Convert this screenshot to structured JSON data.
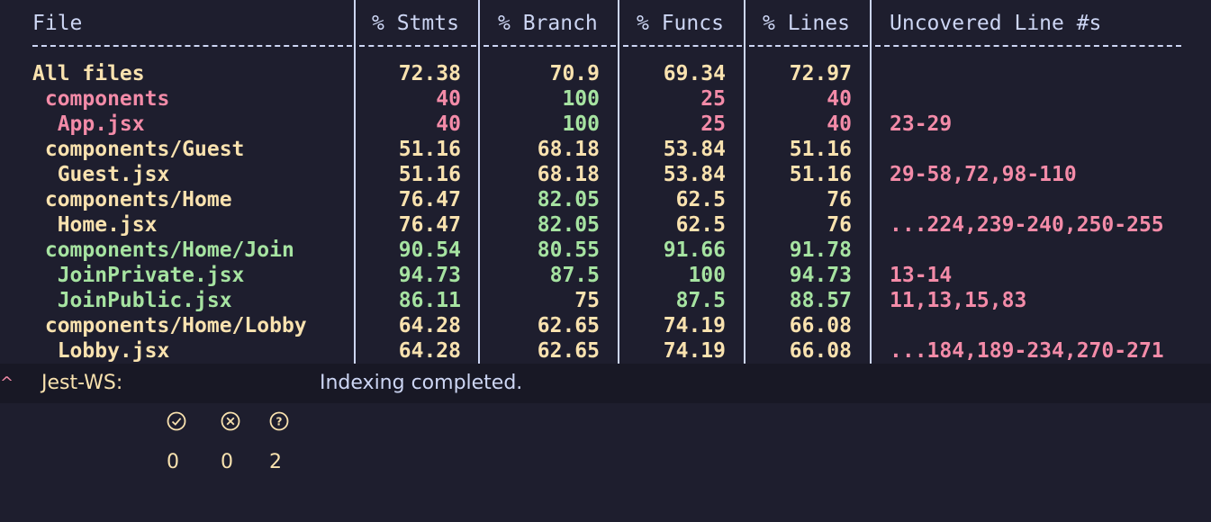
{
  "table": {
    "headers": [
      "File",
      "% Stmts",
      "% Branch",
      "% Funcs",
      "% Lines",
      "Uncovered Line #s"
    ],
    "rows": [
      {
        "file": "All files",
        "stmts": "72.38",
        "branch": "70.9",
        "funcs": "69.34",
        "lines": "72.97",
        "uncovered": "",
        "colors": [
          "y",
          "y",
          "y",
          "y",
          "y",
          "r"
        ]
      },
      {
        "file": " components",
        "stmts": "40",
        "branch": "100",
        "funcs": "25",
        "lines": "40",
        "uncovered": "",
        "colors": [
          "r",
          "r",
          "g",
          "r",
          "r",
          "r"
        ]
      },
      {
        "file": "  App.jsx",
        "stmts": "40",
        "branch": "100",
        "funcs": "25",
        "lines": "40",
        "uncovered": "23-29",
        "colors": [
          "r",
          "r",
          "g",
          "r",
          "r",
          "r"
        ]
      },
      {
        "file": " components/Guest",
        "stmts": "51.16",
        "branch": "68.18",
        "funcs": "53.84",
        "lines": "51.16",
        "uncovered": "",
        "colors": [
          "y",
          "y",
          "y",
          "y",
          "y",
          "r"
        ]
      },
      {
        "file": "  Guest.jsx",
        "stmts": "51.16",
        "branch": "68.18",
        "funcs": "53.84",
        "lines": "51.16",
        "uncovered": "29-58,72,98-110",
        "colors": [
          "y",
          "y",
          "y",
          "y",
          "y",
          "r"
        ]
      },
      {
        "file": " components/Home",
        "stmts": "76.47",
        "branch": "82.05",
        "funcs": "62.5",
        "lines": "76",
        "uncovered": "",
        "colors": [
          "y",
          "y",
          "g",
          "y",
          "y",
          "r"
        ]
      },
      {
        "file": "  Home.jsx",
        "stmts": "76.47",
        "branch": "82.05",
        "funcs": "62.5",
        "lines": "76",
        "uncovered": "...224,239-240,250-255",
        "colors": [
          "y",
          "y",
          "g",
          "y",
          "y",
          "r"
        ]
      },
      {
        "file": " components/Home/Join",
        "stmts": "90.54",
        "branch": "80.55",
        "funcs": "91.66",
        "lines": "91.78",
        "uncovered": "",
        "colors": [
          "g",
          "g",
          "g",
          "g",
          "g",
          "r"
        ]
      },
      {
        "file": "  JoinPrivate.jsx",
        "stmts": "94.73",
        "branch": "87.5",
        "funcs": "100",
        "lines": "94.73",
        "uncovered": "13-14",
        "colors": [
          "g",
          "g",
          "g",
          "g",
          "g",
          "r"
        ]
      },
      {
        "file": "  JoinPublic.jsx",
        "stmts": "86.11",
        "branch": "75",
        "funcs": "87.5",
        "lines": "88.57",
        "uncovered": "11,13,15,83",
        "colors": [
          "g",
          "g",
          "y",
          "g",
          "g",
          "r"
        ]
      },
      {
        "file": " components/Home/Lobby",
        "stmts": "64.28",
        "branch": "62.65",
        "funcs": "74.19",
        "lines": "66.08",
        "uncovered": "",
        "colors": [
          "y",
          "y",
          "y",
          "y",
          "y",
          "r"
        ]
      },
      {
        "file": "  Lobby.jsx",
        "stmts": "64.28",
        "branch": "62.65",
        "funcs": "74.19",
        "lines": "66.08",
        "uncovered": "...184,189-234,270-271",
        "colors": [
          "y",
          "y",
          "y",
          "y",
          "y",
          "r"
        ]
      }
    ]
  },
  "statusbar": {
    "jest_label": "Jest-WS:",
    "passed_count": "0",
    "failed_count": "0",
    "unknown_count": "2",
    "message": "Indexing completed.",
    "left_glyph": "^"
  },
  "colors": {
    "background": "#1e1e2e",
    "yellow": "#f9e2af",
    "red": "#f38ba8",
    "green": "#a6e3a1",
    "text": "#cdd6f4"
  }
}
